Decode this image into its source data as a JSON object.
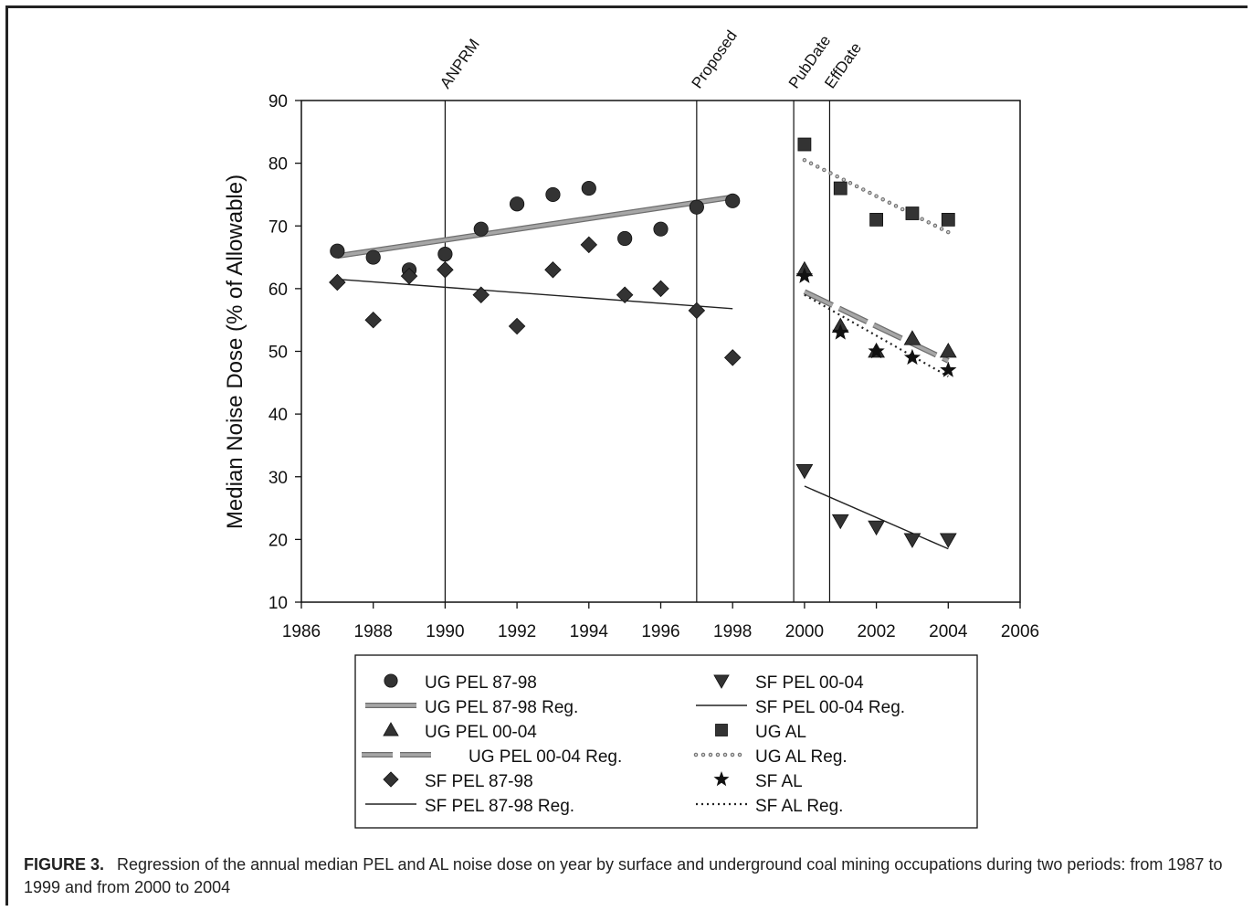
{
  "chart_data": {
    "type": "scatter",
    "ylabel": "Median Noise Dose (% of Allowable)",
    "xlim": [
      1986,
      2006
    ],
    "ylim": [
      10,
      90
    ],
    "xticks": [
      1986,
      1988,
      1990,
      1992,
      1994,
      1996,
      1998,
      2000,
      2002,
      2004,
      2006
    ],
    "yticks": [
      10,
      20,
      30,
      40,
      50,
      60,
      70,
      80,
      90
    ],
    "grid": false,
    "legend_position": "bottom",
    "vlines": [
      {
        "x": 1990,
        "label": "ANPRM"
      },
      {
        "x": 1997,
        "label": "Proposed"
      },
      {
        "x": 1999.7,
        "label": "PubDate"
      },
      {
        "x": 2000.7,
        "label": "EffDate"
      }
    ],
    "series": [
      {
        "name": "UG PEL 87-98",
        "kind": "points",
        "marker": "circle",
        "x": [
          1987,
          1988,
          1989,
          1990,
          1991,
          1992,
          1993,
          1994,
          1995,
          1996,
          1997,
          1998
        ],
        "y": [
          66,
          65,
          63,
          65.5,
          69.5,
          73.5,
          75,
          76,
          68,
          69.5,
          73,
          74
        ]
      },
      {
        "name": "UG PEL 87-98 Reg.",
        "kind": "line",
        "style": "thick-gray",
        "x": [
          1987,
          1998
        ],
        "y": [
          65.2,
          74.6
        ]
      },
      {
        "name": "UG PEL 00-04",
        "kind": "points",
        "marker": "triangle-up",
        "x": [
          2000,
          2001,
          2002,
          2003,
          2004
        ],
        "y": [
          63,
          54,
          50,
          52,
          50
        ]
      },
      {
        "name": "UG PEL 00-04 Reg.",
        "kind": "line",
        "style": "thick-gray-dashed",
        "x": [
          2000,
          2004
        ],
        "y": [
          59.5,
          48.5
        ]
      },
      {
        "name": "SF PEL 87-98",
        "kind": "points",
        "marker": "diamond",
        "x": [
          1987,
          1988,
          1989,
          1990,
          1991,
          1992,
          1993,
          1994,
          1995,
          1996,
          1997,
          1998
        ],
        "y": [
          61,
          55,
          62,
          63,
          59,
          54,
          63,
          67,
          59,
          60,
          56.5,
          49
        ]
      },
      {
        "name": "SF PEL 87-98 Reg.",
        "kind": "line",
        "style": "thin-solid",
        "x": [
          1987,
          1998
        ],
        "y": [
          61.5,
          56.8
        ]
      },
      {
        "name": "SF PEL 00-04",
        "kind": "points",
        "marker": "triangle-down",
        "x": [
          2000,
          2001,
          2002,
          2003,
          2004
        ],
        "y": [
          31,
          23,
          22,
          20,
          20
        ]
      },
      {
        "name": "SF PEL 00-04 Reg.",
        "kind": "line",
        "style": "thin-solid",
        "x": [
          2000,
          2004
        ],
        "y": [
          28.5,
          18.5
        ]
      },
      {
        "name": "UG AL",
        "kind": "points",
        "marker": "square",
        "x": [
          2000,
          2001,
          2002,
          2003,
          2004
        ],
        "y": [
          83,
          76,
          71,
          72,
          71
        ]
      },
      {
        "name": "UG AL Reg.",
        "kind": "line",
        "style": "gray-dotted",
        "x": [
          2000,
          2004
        ],
        "y": [
          80.5,
          69
        ]
      },
      {
        "name": "SF AL",
        "kind": "points",
        "marker": "star",
        "x": [
          2000,
          2001,
          2002,
          2003,
          2004
        ],
        "y": [
          62,
          53,
          50,
          49,
          47
        ]
      },
      {
        "name": "SF AL Reg.",
        "kind": "line",
        "style": "dotted",
        "x": [
          2000,
          2004
        ],
        "y": [
          59,
          46
        ]
      }
    ]
  },
  "caption": {
    "label": "FIGURE 3.",
    "text": "Regression of the annual median PEL and AL noise dose on year by surface and underground coal mining occupations during two periods: from 1987 to 1999 and from 2000 to 2004"
  },
  "colors": {
    "marker": "#333333",
    "reg_gray": "#a6a6a6",
    "reg_gray_edge": "#6e6e6e",
    "axis": "#111111"
  }
}
